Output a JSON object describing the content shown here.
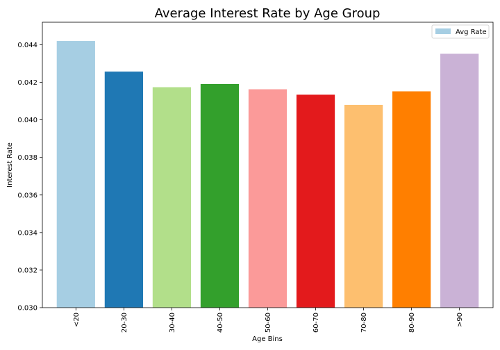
{
  "chart_data": {
    "type": "bar",
    "title": "Average Interest Rate by Age Group",
    "xlabel": "Age Bins",
    "ylabel": "Interest Rate",
    "categories": [
      "<20",
      "20-30",
      "30-40",
      "40-50",
      "50-60",
      "60-70",
      "70-80",
      "80-90",
      ">90"
    ],
    "series": [
      {
        "name": "Avg Rate",
        "values": [
          0.0442,
          0.04257,
          0.04174,
          0.04191,
          0.04163,
          0.04134,
          0.0408,
          0.04152,
          0.04352
        ]
      }
    ],
    "colors": [
      "#a6cee3",
      "#1f78b4",
      "#b2df8a",
      "#33a02c",
      "#fb9a99",
      "#e31a1c",
      "#fdbf6f",
      "#ff7f00",
      "#cab2d6"
    ],
    "ylim": [
      0.03,
      0.0452
    ],
    "yticks": [
      "0.030",
      "0.032",
      "0.034",
      "0.036",
      "0.038",
      "0.040",
      "0.042",
      "0.044"
    ],
    "grid": false,
    "legend": {
      "position": "top-right",
      "entries": [
        "Avg Rate"
      ]
    }
  }
}
